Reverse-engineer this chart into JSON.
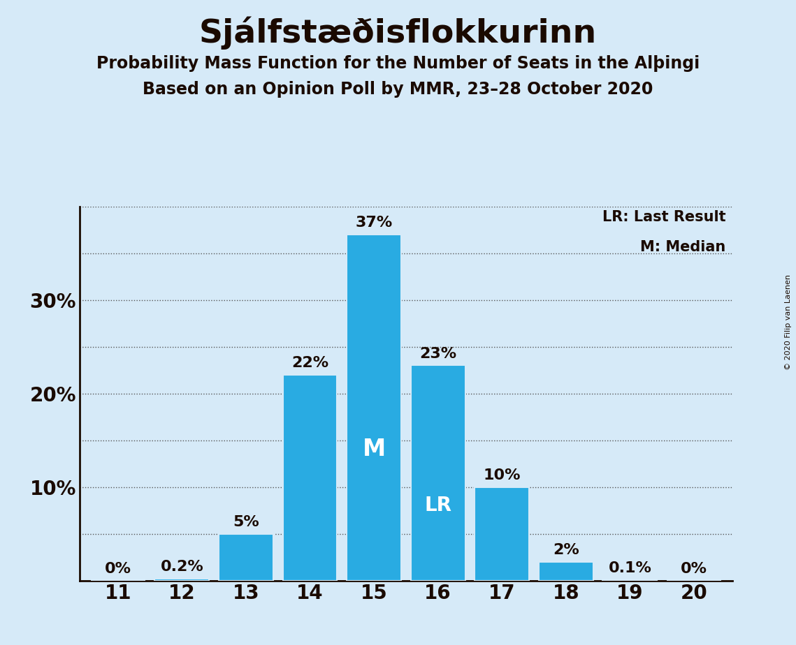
{
  "title": "Sjálfstæðisflokkurinn",
  "subtitle1": "Probability Mass Function for the Number of Seats in the Alþingi",
  "subtitle2": "Based on an Opinion Poll by MMR, 23–28 October 2020",
  "copyright": "© 2020 Filip van Laenen",
  "seats": [
    11,
    12,
    13,
    14,
    15,
    16,
    17,
    18,
    19,
    20
  ],
  "values": [
    0.0,
    0.2,
    5.0,
    22.0,
    37.0,
    23.0,
    10.0,
    2.0,
    0.1,
    0.0
  ],
  "labels": [
    "0%",
    "0.2%",
    "5%",
    "22%",
    "37%",
    "23%",
    "10%",
    "2%",
    "0.1%",
    "0%"
  ],
  "bar_color": "#29ABE2",
  "median_seat": 15,
  "last_result_seat": 16,
  "background_color": "#D6EAF8",
  "title_color": "#1a0a00",
  "bar_label_color_outside": "#1a0a00",
  "bar_label_color_inside": "#FFFFFF",
  "legend_lr": "LR: Last Result",
  "legend_m": "M: Median",
  "ylim": [
    0,
    40
  ],
  "yticks": [
    0,
    5,
    10,
    15,
    20,
    25,
    30,
    35,
    40
  ],
  "ytick_labels_show": {
    "10": "10%",
    "20": "20%",
    "30": "30%"
  },
  "grid_color": "#555555",
  "spine_color": "#1a0a00"
}
